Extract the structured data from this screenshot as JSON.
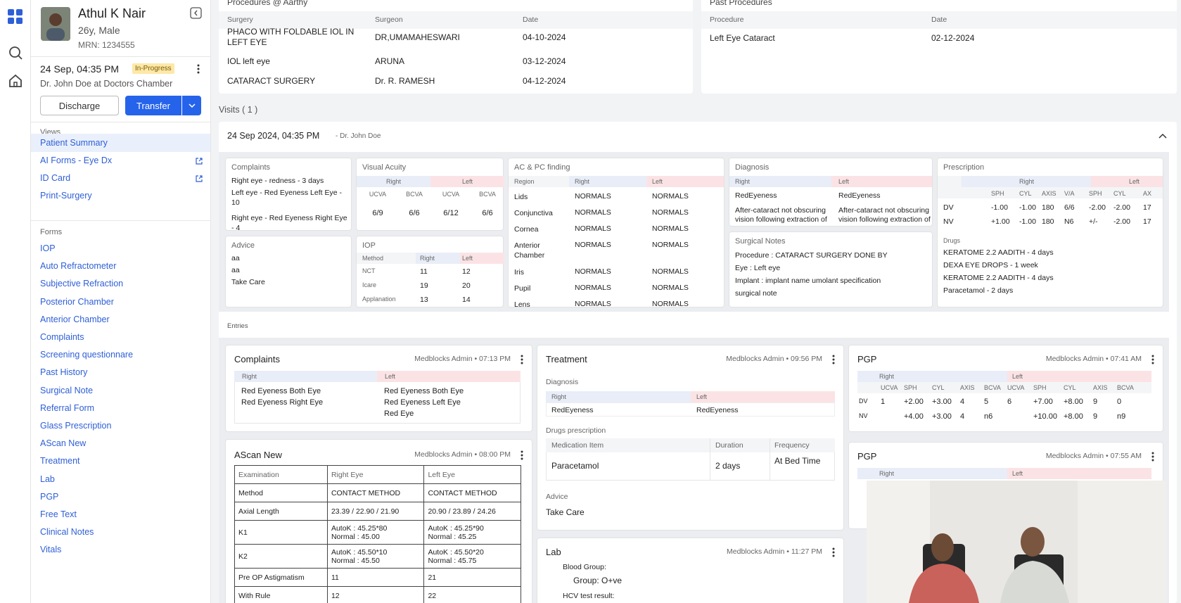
{
  "rail": {
    "icons": [
      "dashboard-icon",
      "search-icon",
      "home-icon"
    ]
  },
  "patient": {
    "name": "Athul K Nair",
    "age_sex": "26y, Male",
    "mrn": "MRN: 1234555",
    "visit_time": "24 Sep, 04:35 PM",
    "status": "In-Progress",
    "doctor_line": "Dr. John Doe at Doctors Chamber"
  },
  "actions": {
    "discharge": "Discharge",
    "transfer": "Transfer"
  },
  "views": {
    "title": "Views",
    "items": [
      {
        "label": "Patient Summary",
        "external": false
      },
      {
        "label": "AI Forms - Eye Dx",
        "external": true
      },
      {
        "label": "ID Card",
        "external": true
      },
      {
        "label": "Print-Surgery",
        "external": false
      }
    ]
  },
  "forms": {
    "title": "Forms",
    "items": [
      "IOP",
      "Auto Refractometer",
      "Subjective Refraction",
      "Posterior Chamber",
      "Anterior Chamber",
      "Complaints",
      "Screening questionnare",
      "Past History",
      "Surgical Note",
      "Referral Form",
      "Glass Prescription",
      "AScan New",
      "Treatment",
      "Lab",
      "PGP",
      "Free Text",
      "Clinical Notes",
      "Vitals"
    ]
  },
  "procedures": {
    "title": "Procedures @ Aarthy",
    "headers": [
      "Surgery",
      "Surgeon",
      "Date"
    ],
    "rows": [
      [
        "PHACO WITH FOLDABLE IOL IN LEFT EYE",
        "DR,UMAMAHESWARI",
        "04-10-2024"
      ],
      [
        "IOL left eye",
        "ARUNA",
        "03-12-2024"
      ],
      [
        "CATARACT SURGERY",
        "Dr. R. RAMESH",
        "04-12-2024"
      ]
    ]
  },
  "past_procedures": {
    "title": "Past Procedures",
    "headers": [
      "Procedure",
      "Date"
    ],
    "rows": [
      [
        "Left Eye Cataract",
        "02-12-2024"
      ]
    ]
  },
  "visits": {
    "label": "Visits ( 1 )",
    "date": "24 Sep 2024, 04:35 PM",
    "doctor": "- Dr. John Doe"
  },
  "summary": {
    "complaints": {
      "title": "Complaints",
      "items": [
        "Right eye - redness - 3 days",
        "Left eye - Red Eyeness Left Eye - 10",
        "Right eye - Red Eyeness Right Eye - 4"
      ]
    },
    "advice": {
      "title": "Advice",
      "items": [
        "aa",
        "aa",
        "Take Care"
      ]
    },
    "visual_acuity": {
      "title": "Visual Acuity",
      "right": "Right",
      "left": "Left",
      "cols": [
        "UCVA",
        "BCVA",
        "UCVA",
        "BCVA"
      ],
      "values": [
        "6/9",
        "6/6",
        "6/12",
        "6/6"
      ]
    },
    "iop": {
      "title": "IOP",
      "headers": [
        "Method",
        "Right",
        "Left"
      ],
      "rows": [
        [
          "NCT",
          "11",
          "12"
        ],
        [
          "Icare",
          "19",
          "20"
        ],
        [
          "Applanation",
          "13",
          "14"
        ]
      ]
    },
    "acpc": {
      "title": "AC & PC finding",
      "headers": [
        "Region",
        "Right",
        "Left"
      ],
      "rows": [
        [
          "Lids",
          "NORMALS",
          "NORMALS"
        ],
        [
          "Conjunctiva",
          "NORMALS",
          "NORMALS"
        ],
        [
          "Cornea",
          "NORMALS",
          "NORMALS"
        ],
        [
          "Anterior Chamber",
          "NORMALS",
          "NORMALS"
        ],
        [
          "Iris",
          "NORMALS",
          "NORMALS"
        ],
        [
          "Pupil",
          "NORMALS",
          "NORMALS"
        ],
        [
          "Lens",
          "NORMALS",
          "NORMALS"
        ]
      ]
    },
    "diagnosis": {
      "title": "Diagnosis",
      "headers": [
        "Right",
        "Left"
      ],
      "rows": [
        [
          "RedEyeness",
          "RedEyeness"
        ],
        [
          "After-cataract not obscuring vision following extraction of cataract",
          "After-cataract not obscuring vision following extraction of cataract"
        ]
      ]
    },
    "surgical_notes": {
      "title": "Surgical Notes",
      "items": [
        "Procedure : CATARACT SURGERY DONE BY",
        "Eye : Left eye",
        "Implant : implant name umolant specification",
        "surgical note",
        "... ... ..."
      ]
    },
    "prescription": {
      "title": "Prescription",
      "right": "Right",
      "left": "Left",
      "cols": [
        "SPH",
        "CYL",
        "AXIS",
        "V/A",
        "SPH",
        "CYL",
        "AX"
      ],
      "rows": [
        [
          "DV",
          "-1.00",
          "-1.00",
          "180",
          "6/6",
          "-2.00",
          "-2.00",
          "17"
        ],
        [
          "NV",
          "+1.00",
          "-1.00",
          "180",
          "N6",
          "+/-",
          "-2.00",
          "17"
        ]
      ],
      "drugs_title": "Drugs",
      "drugs": [
        "KERATOME 2.2 AADITH - 4 days",
        "DEXA EYE DROPS - 1 week",
        "KERATOME 2.2 AADITH - 4 days",
        "Paracetamol - 2 days"
      ]
    }
  },
  "entries": {
    "label": "Entries",
    "complaints": {
      "title": "Complaints",
      "meta": "Medblocks Admin • 07:13 PM",
      "right": "Right",
      "left": "Left",
      "right_items": [
        "Red Eyeness Both Eye",
        "Red Eyeness Right Eye"
      ],
      "left_items": [
        "Red Eyeness Both Eye",
        "Red Eyeness Left Eye",
        "Red Eye"
      ]
    },
    "ascan": {
      "title": "AScan New",
      "meta": "Medblocks Admin • 08:00 PM",
      "rows": [
        [
          "Examination",
          "Right Eye",
          "Left Eye"
        ],
        [
          "Method",
          "CONTACT METHOD",
          "CONTACT METHOD"
        ],
        [
          "Axial Length",
          "23.39 / 22.90 / 21.90",
          "20.90 / 23.89 / 24.26"
        ],
        [
          "K1",
          "AutoK : 45.25*80\nNormal : 45.00",
          "AutoK : 45.25*90\nNormal : 45.25"
        ],
        [
          "K2",
          "AutoK : 45.50*10\nNormal : 45.50",
          "AutoK : 45.50*20\nNormal : 45.75"
        ],
        [
          "Pre OP Astigmatism",
          "11",
          "21"
        ],
        [
          "With Rule",
          "12",
          "22"
        ]
      ]
    },
    "treatment": {
      "title": "Treatment",
      "meta": "Medblocks Admin • 09:56 PM",
      "diagnosis_title": "Diagnosis",
      "right": "Right",
      "left": "Left",
      "diag_right": "RedEyeness",
      "diag_left": "RedEyeness",
      "drugs_title": "Drugs prescription",
      "drug_headers": [
        "Medication Item",
        "Duration",
        "Frequency"
      ],
      "drug_row": [
        "Paracetamol",
        "2 days",
        "At Bed Time"
      ],
      "advice_title": "Advice",
      "advice": "Take Care"
    },
    "lab": {
      "title": "Lab",
      "meta": "Medblocks Admin • 11:27 PM",
      "blood_label": "Blood Group:",
      "blood_value": "Group: O+ve",
      "hcv": "HCV test result:"
    },
    "pgp1": {
      "title": "PGP",
      "meta": "Medblocks Admin • 07:41 AM",
      "right": "Right",
      "left": "Left",
      "cols": [
        "UCVA",
        "SPH",
        "CYL",
        "AXIS",
        "BCVA",
        "UCVA",
        "SPH",
        "CYL",
        "AXIS",
        "BCVA"
      ],
      "rows": [
        [
          "DV",
          "1",
          "+2.00",
          "+3.00",
          "4",
          "5",
          "6",
          "+7.00",
          "+8.00",
          "9",
          "0"
        ],
        [
          "NV",
          "",
          "+4.00",
          "+3.00",
          "4",
          "n6",
          "",
          "+10.00",
          "+8.00",
          "9",
          "n9"
        ]
      ]
    },
    "pgp2": {
      "title": "PGP",
      "meta": "Medblocks Admin • 07:55 AM",
      "right": "Right",
      "left": "Left"
    }
  }
}
